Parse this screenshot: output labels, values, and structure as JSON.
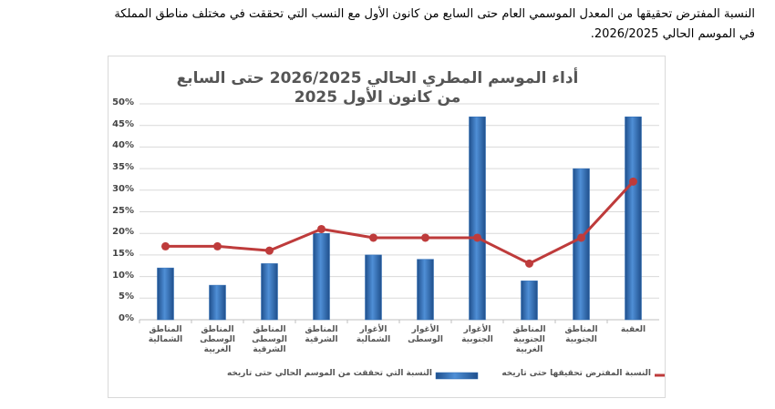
{
  "document": {
    "paragraph_lines": [
      "النسبة المفترض تحقيقها من المعدل الموسمي العام حتى السابع من كانون الأول مع النسب التي تحققت في مختلف مناطق المملكة",
      "في الموسم الحالي 2026/2025."
    ]
  },
  "chart_data": {
    "type": "bar_line",
    "title": "أداء الموسم المطري الحالي 2026/2025 حتى السابع من كانون الأول 2025",
    "categories": [
      "المناطق الشمالية",
      "المناطق الوسطى الغربية",
      "المناطق الوسطى الشرقية",
      "المناطق الشرقية",
      "الأغوار الشمالية",
      "الأغوار الوسطى",
      "الأغوار الجنوبية",
      "المناطق الجنوبية الغربية",
      "المناطق الجنوبية",
      "العقبة"
    ],
    "series": [
      {
        "name": "النسبة التي تحققت من الموسم الحالي حتى تاريخه",
        "type": "bar",
        "color": "#2f6db6",
        "values": [
          12,
          8,
          13,
          20,
          15,
          14,
          47,
          9,
          35,
          47
        ]
      },
      {
        "name": "النسبة المفترض تحقيقها حتى تاريخه",
        "type": "line",
        "color": "#be3b3b",
        "values": [
          17,
          17,
          16,
          21,
          19,
          19,
          19,
          13,
          19,
          32
        ]
      }
    ],
    "ylim": [
      0,
      50
    ],
    "yticks": [
      {
        "value": 0,
        "label": "0%"
      },
      {
        "value": 5,
        "label": "5%"
      },
      {
        "value": 10,
        "label": "10%"
      },
      {
        "value": 15,
        "label": "15%"
      },
      {
        "value": 20,
        "label": "20%"
      },
      {
        "value": 25,
        "label": "25%"
      },
      {
        "value": 30,
        "label": "30%"
      },
      {
        "value": 35,
        "label": "35%"
      },
      {
        "value": 40,
        "label": "40%"
      },
      {
        "value": 45,
        "label": "45%"
      },
      {
        "value": 50,
        "label": "50%"
      }
    ],
    "grid": true,
    "legend": "bottom"
  }
}
